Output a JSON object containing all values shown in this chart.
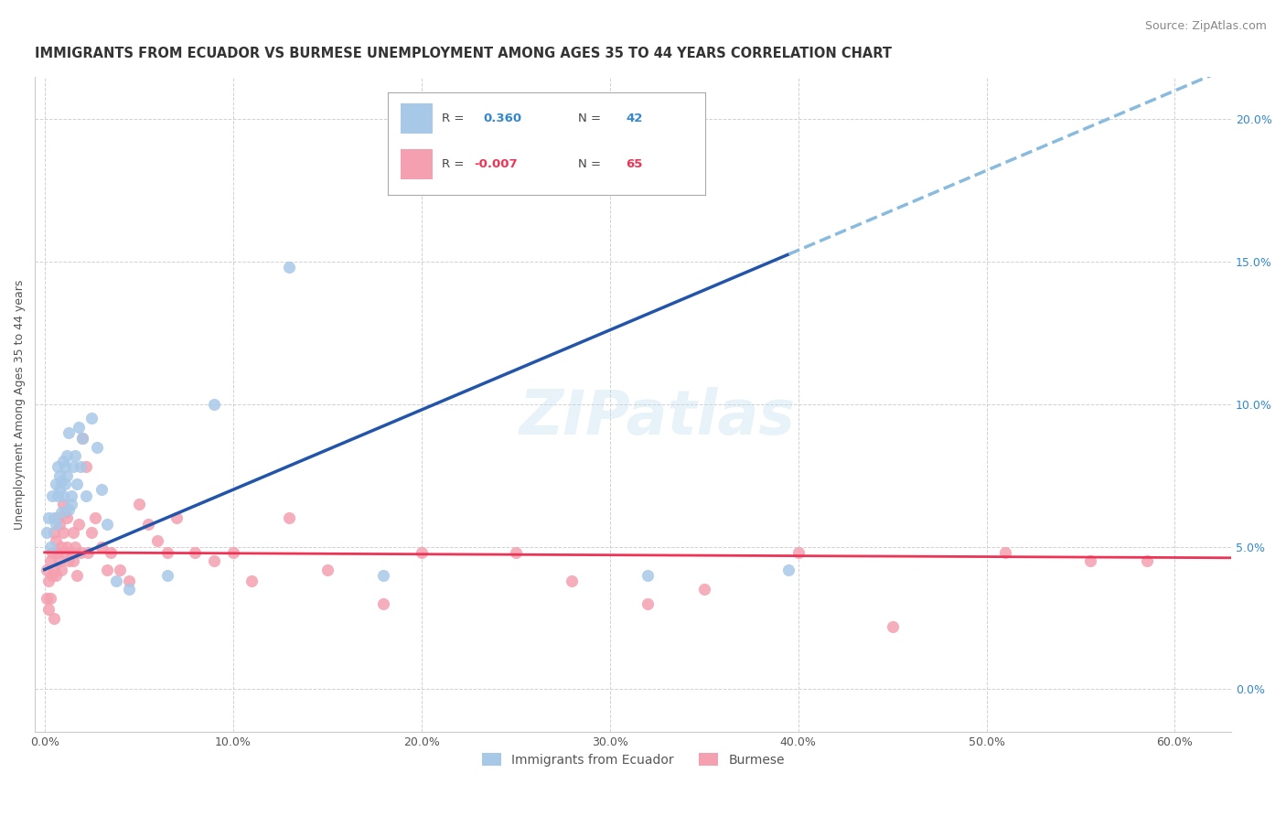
{
  "title": "IMMIGRANTS FROM ECUADOR VS BURMESE UNEMPLOYMENT AMONG AGES 35 TO 44 YEARS CORRELATION CHART",
  "source": "Source: ZipAtlas.com",
  "xlabel_ticks": [
    "0.0%",
    "10.0%",
    "20.0%",
    "30.0%",
    "40.0%",
    "50.0%",
    "60.0%"
  ],
  "xlabel_vals": [
    0.0,
    0.1,
    0.2,
    0.3,
    0.4,
    0.5,
    0.6
  ],
  "ylabel_ticks": [
    "0.0%",
    "5.0%",
    "10.0%",
    "15.0%",
    "20.0%"
  ],
  "ylabel_vals": [
    0.0,
    0.05,
    0.1,
    0.15,
    0.2
  ],
  "xlim": [
    -0.005,
    0.63
  ],
  "ylim": [
    -0.015,
    0.215
  ],
  "color_blue": "#A8C8E8",
  "color_pink": "#F4A0B0",
  "trendline_blue_solid_color": "#2255AA",
  "trendline_pink_solid_color": "#EE3355",
  "trendline_blue_dash_color": "#88BBDD",
  "watermark": "ZIPatlas",
  "blue_x": [
    0.001,
    0.002,
    0.003,
    0.004,
    0.005,
    0.006,
    0.006,
    0.007,
    0.007,
    0.008,
    0.008,
    0.009,
    0.009,
    0.01,
    0.01,
    0.011,
    0.011,
    0.012,
    0.012,
    0.013,
    0.013,
    0.014,
    0.014,
    0.015,
    0.016,
    0.017,
    0.018,
    0.019,
    0.02,
    0.022,
    0.025,
    0.028,
    0.03,
    0.033,
    0.038,
    0.045,
    0.065,
    0.09,
    0.13,
    0.18,
    0.32,
    0.395
  ],
  "blue_y": [
    0.055,
    0.06,
    0.05,
    0.068,
    0.06,
    0.072,
    0.058,
    0.068,
    0.078,
    0.075,
    0.07,
    0.073,
    0.062,
    0.068,
    0.08,
    0.078,
    0.072,
    0.082,
    0.075,
    0.09,
    0.063,
    0.065,
    0.068,
    0.078,
    0.082,
    0.072,
    0.092,
    0.078,
    0.088,
    0.068,
    0.095,
    0.085,
    0.07,
    0.058,
    0.038,
    0.035,
    0.04,
    0.1,
    0.148,
    0.04,
    0.04,
    0.042
  ],
  "pink_x": [
    0.001,
    0.001,
    0.002,
    0.002,
    0.003,
    0.003,
    0.004,
    0.004,
    0.005,
    0.005,
    0.005,
    0.006,
    0.006,
    0.007,
    0.007,
    0.008,
    0.008,
    0.009,
    0.009,
    0.01,
    0.01,
    0.011,
    0.011,
    0.012,
    0.012,
    0.013,
    0.014,
    0.015,
    0.015,
    0.016,
    0.017,
    0.018,
    0.019,
    0.02,
    0.022,
    0.023,
    0.025,
    0.027,
    0.03,
    0.033,
    0.035,
    0.04,
    0.045,
    0.05,
    0.055,
    0.06,
    0.065,
    0.07,
    0.08,
    0.09,
    0.1,
    0.11,
    0.13,
    0.15,
    0.18,
    0.2,
    0.25,
    0.28,
    0.32,
    0.35,
    0.4,
    0.45,
    0.51,
    0.555,
    0.585
  ],
  "pink_y": [
    0.042,
    0.032,
    0.038,
    0.028,
    0.045,
    0.032,
    0.04,
    0.048,
    0.025,
    0.042,
    0.055,
    0.04,
    0.052,
    0.06,
    0.048,
    0.045,
    0.058,
    0.05,
    0.042,
    0.055,
    0.065,
    0.062,
    0.048,
    0.05,
    0.06,
    0.045,
    0.048,
    0.055,
    0.045,
    0.05,
    0.04,
    0.058,
    0.048,
    0.088,
    0.078,
    0.048,
    0.055,
    0.06,
    0.05,
    0.042,
    0.048,
    0.042,
    0.038,
    0.065,
    0.058,
    0.052,
    0.048,
    0.06,
    0.048,
    0.045,
    0.048,
    0.038,
    0.06,
    0.042,
    0.03,
    0.048,
    0.048,
    0.038,
    0.03,
    0.035,
    0.048,
    0.022,
    0.048,
    0.045,
    0.045
  ],
  "legend_label_blue": "Immigrants from Ecuador",
  "legend_label_pink": "Burmese",
  "title_fontsize": 10.5,
  "source_fontsize": 9,
  "axis_label_fontsize": 9,
  "tick_fontsize": 9,
  "trendline_blue_intercept": 0.042,
  "trendline_blue_slope": 0.28,
  "trendline_pink_intercept": 0.048,
  "trendline_pink_slope": -0.003
}
